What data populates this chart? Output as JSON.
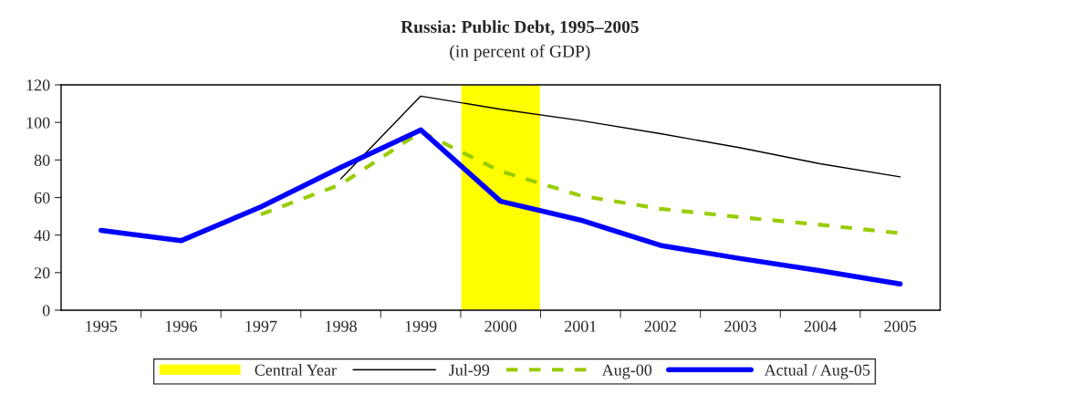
{
  "chart_data": {
    "type": "line",
    "title": "Russia: Public Debt, 1995–2005",
    "subtitle": "(in percent of GDP)",
    "categories": [
      "1995",
      "1996",
      "1997",
      "1998",
      "1999",
      "2000",
      "2001",
      "2002",
      "2003",
      "2004",
      "2005"
    ],
    "series": [
      {
        "name": "Central Year",
        "type": "bar",
        "color": "#ffff00",
        "values": [
          null,
          null,
          null,
          null,
          null,
          120,
          null,
          null,
          null,
          null,
          null
        ]
      },
      {
        "name": "Jul-99",
        "color": "#000000",
        "line_style": "solid",
        "values": [
          null,
          null,
          null,
          70,
          114,
          107,
          101,
          94,
          86.5,
          78,
          71
        ]
      },
      {
        "name": "Aug-00",
        "color": "#99cc00",
        "line_style": "dashed",
        "values": [
          null,
          null,
          51,
          67,
          95,
          74,
          61,
          54,
          49.5,
          45.5,
          41
        ]
      },
      {
        "name": "Actual / Aug-05",
        "color": "#0000ff",
        "line_style": "solid",
        "values": [
          42.5,
          37,
          55,
          76,
          96,
          58,
          48,
          34.5,
          27.5,
          21,
          14
        ]
      }
    ],
    "ylim": [
      0,
      120
    ],
    "yticks": [
      0,
      20,
      40,
      60,
      80,
      100,
      120
    ],
    "grid": false,
    "legend": "bottom",
    "marker": "none"
  }
}
